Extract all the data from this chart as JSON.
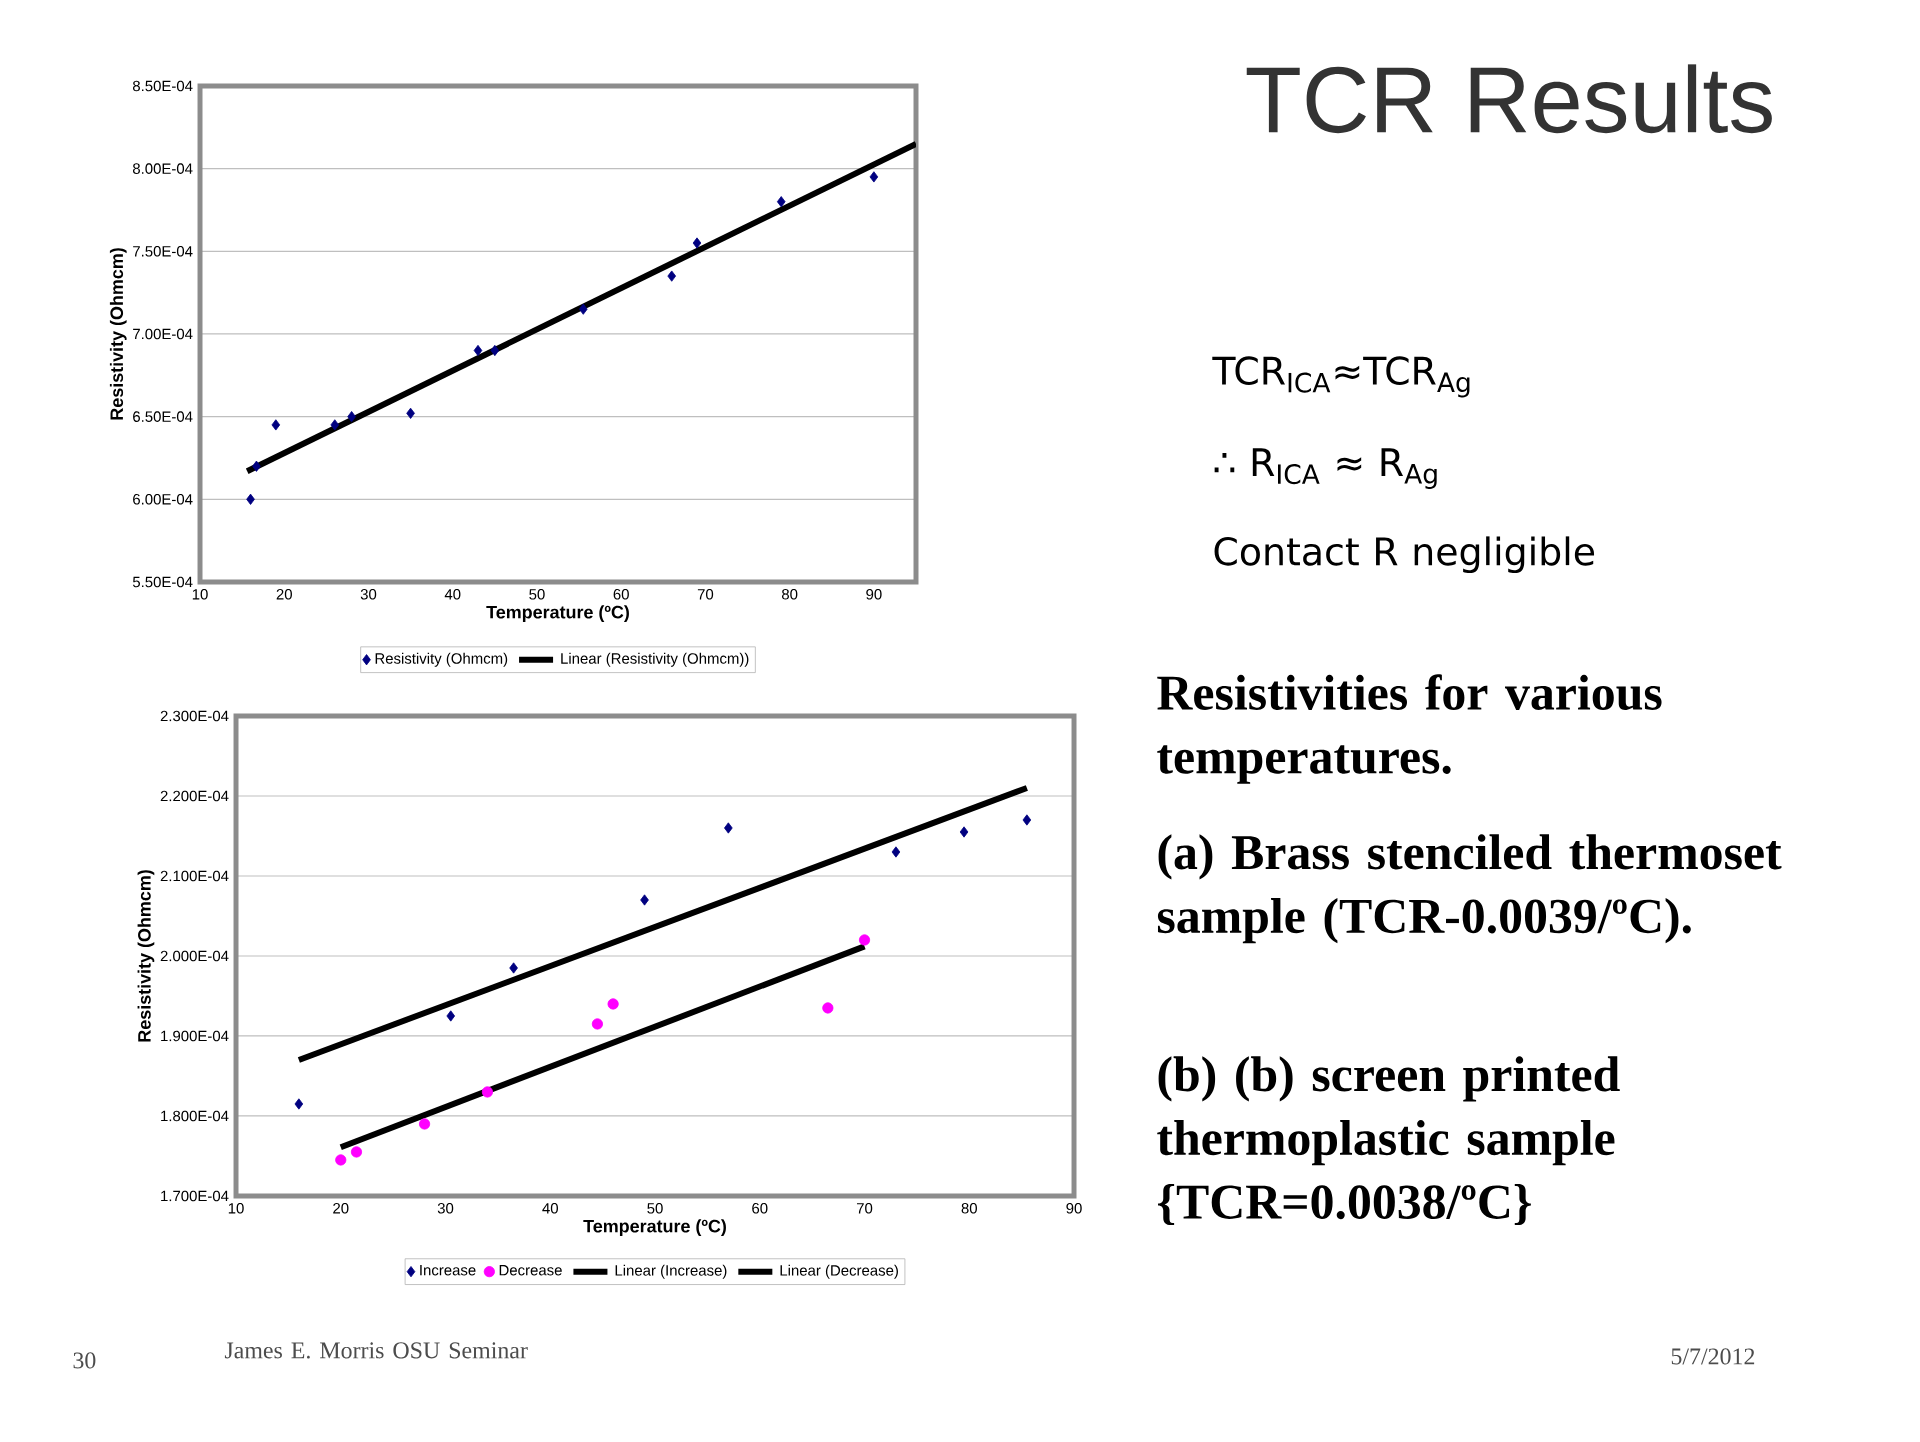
{
  "chart_data": [
    {
      "type": "scatter",
      "xlabel": "Temperature (ºC)",
      "ylabel": "Resistivity (Ohmcm)",
      "xlim": [
        10,
        95
      ],
      "xticks": [
        10,
        20,
        30,
        40,
        50,
        60,
        70,
        80,
        90
      ],
      "ylim": [
        0.00055,
        0.00085
      ],
      "yticks": [
        {
          "value": 0.00055,
          "label": "5.50E-04"
        },
        {
          "value": 0.0006,
          "label": "6.00E-04"
        },
        {
          "value": 0.00065,
          "label": "6.50E-04"
        },
        {
          "value": 0.0007,
          "label": "7.00E-04"
        },
        {
          "value": 0.00075,
          "label": "7.50E-04"
        },
        {
          "value": 0.0008,
          "label": "8.00E-04"
        },
        {
          "value": 0.00085,
          "label": "8.50E-04"
        }
      ],
      "grid": "y",
      "legend": "bottom",
      "series": [
        {
          "name": "Resistivity (Ohmcm)",
          "color": "#000080",
          "marker": "diamond",
          "x": [
            16,
            16.7,
            19,
            26,
            28,
            35,
            43,
            45,
            55.5,
            66,
            69,
            79,
            90
          ],
          "values": [
            0.0006,
            0.00062,
            0.000645,
            0.000645,
            0.00065,
            0.000652,
            0.00069,
            0.00069,
            0.000715,
            0.000735,
            0.000755,
            0.00078,
            0.000795
          ]
        },
        {
          "name": "Linear (Resistivity (Ohmcm))",
          "type": "line",
          "color": "#000000",
          "marker": "none",
          "x": [
            15.6,
            95
          ],
          "values": [
            0.000617,
            0.000815
          ]
        }
      ]
    },
    {
      "type": "scatter",
      "xlabel": "Temperature (ºC)",
      "ylabel": "Resistivity (Ohmcm)",
      "xlim": [
        10,
        90
      ],
      "xticks": [
        10,
        20,
        30,
        40,
        50,
        60,
        70,
        80,
        90
      ],
      "ylim": [
        0.00017,
        0.00023
      ],
      "yticks": [
        {
          "value": 0.00017,
          "label": "1.700E-04"
        },
        {
          "value": 0.00018,
          "label": "1.800E-04"
        },
        {
          "value": 0.00019,
          "label": "1.900E-04"
        },
        {
          "value": 0.0002,
          "label": "2.000E-04"
        },
        {
          "value": 0.00021,
          "label": "2.100E-04"
        },
        {
          "value": 0.00022,
          "label": "2.200E-04"
        },
        {
          "value": 0.00023,
          "label": "2.300E-04"
        }
      ],
      "grid": "y",
      "legend": "bottom",
      "series": [
        {
          "name": "Increase",
          "color": "#000080",
          "marker": "diamond",
          "x": [
            16,
            30.5,
            36.5,
            49,
            57,
            73,
            79.5,
            85.5
          ],
          "values": [
            0.0001815,
            0.0001925,
            0.0001985,
            0.000207,
            0.000216,
            0.000213,
            0.0002155,
            0.000217
          ]
        },
        {
          "name": "Decrease",
          "color": "#ff00ff",
          "marker": "circle",
          "x": [
            20,
            21.5,
            28,
            34,
            44.5,
            46,
            66.5,
            70
          ],
          "values": [
            0.0001745,
            0.0001755,
            0.000179,
            0.000183,
            0.0001915,
            0.000194,
            0.0001935,
            0.000202
          ]
        },
        {
          "name": "Linear (Increase)",
          "type": "line",
          "color": "#000000",
          "marker": "none",
          "x": [
            16,
            85.5
          ],
          "values": [
            0.000187,
            0.000221
          ]
        },
        {
          "name": "Linear (Decrease)",
          "type": "line",
          "color": "#000000",
          "marker": "none",
          "x": [
            20,
            70
          ],
          "values": [
            0.0001761,
            0.0002012
          ]
        }
      ]
    },
    {
      "type": "other",
      "title": "TCR Results",
      "annotations": [
        "TCR$_{ICA}$≈TCR$_{Ag}$",
        "∴ R$_{ICA}$ ≈ R$_{Ag}$",
        "Contact R negligible",
        "Resistivities for various temperatures.",
        "(a) Brass stenciled thermoset sample (TCR-0.0039/ºC).",
        "(b) (b) screen printed thermoplastic sample {TCR=0.0038/ºC}",
        "James E. Morris OSU Seminar",
        "5/7/2012",
        "30"
      ]
    }
  ]
}
